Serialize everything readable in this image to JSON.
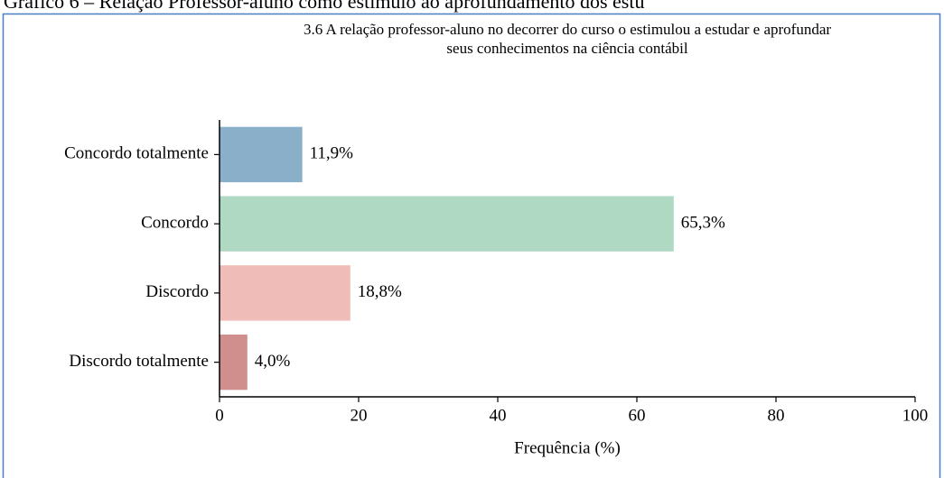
{
  "caption": "Gráfico 6 – Relação Professor-aluno como estímulo ao aprofundamento dos estu",
  "chart_data": {
    "type": "barh",
    "title": [
      "3.6  A relação professor-aluno no decorrer do curso o estimulou a estudar e aprofundar",
      "seus conhecimentos na ciência contábil"
    ],
    "categories": [
      "Concordo totalmente",
      "Concordo",
      "Discordo",
      "Discordo totalmente"
    ],
    "values": [
      11.9,
      65.3,
      18.8,
      4.0
    ],
    "value_labels": [
      "11,9%",
      "65,3%",
      "18,8%",
      "4,0%"
    ],
    "colors": [
      "#8aafc8",
      "#b0d9c4",
      "#efbcb8",
      "#d08f8c"
    ],
    "xlabel": "Frequência (%)",
    "xlim": [
      0,
      100
    ],
    "xticks": [
      0,
      20,
      40,
      60,
      80,
      100
    ]
  }
}
